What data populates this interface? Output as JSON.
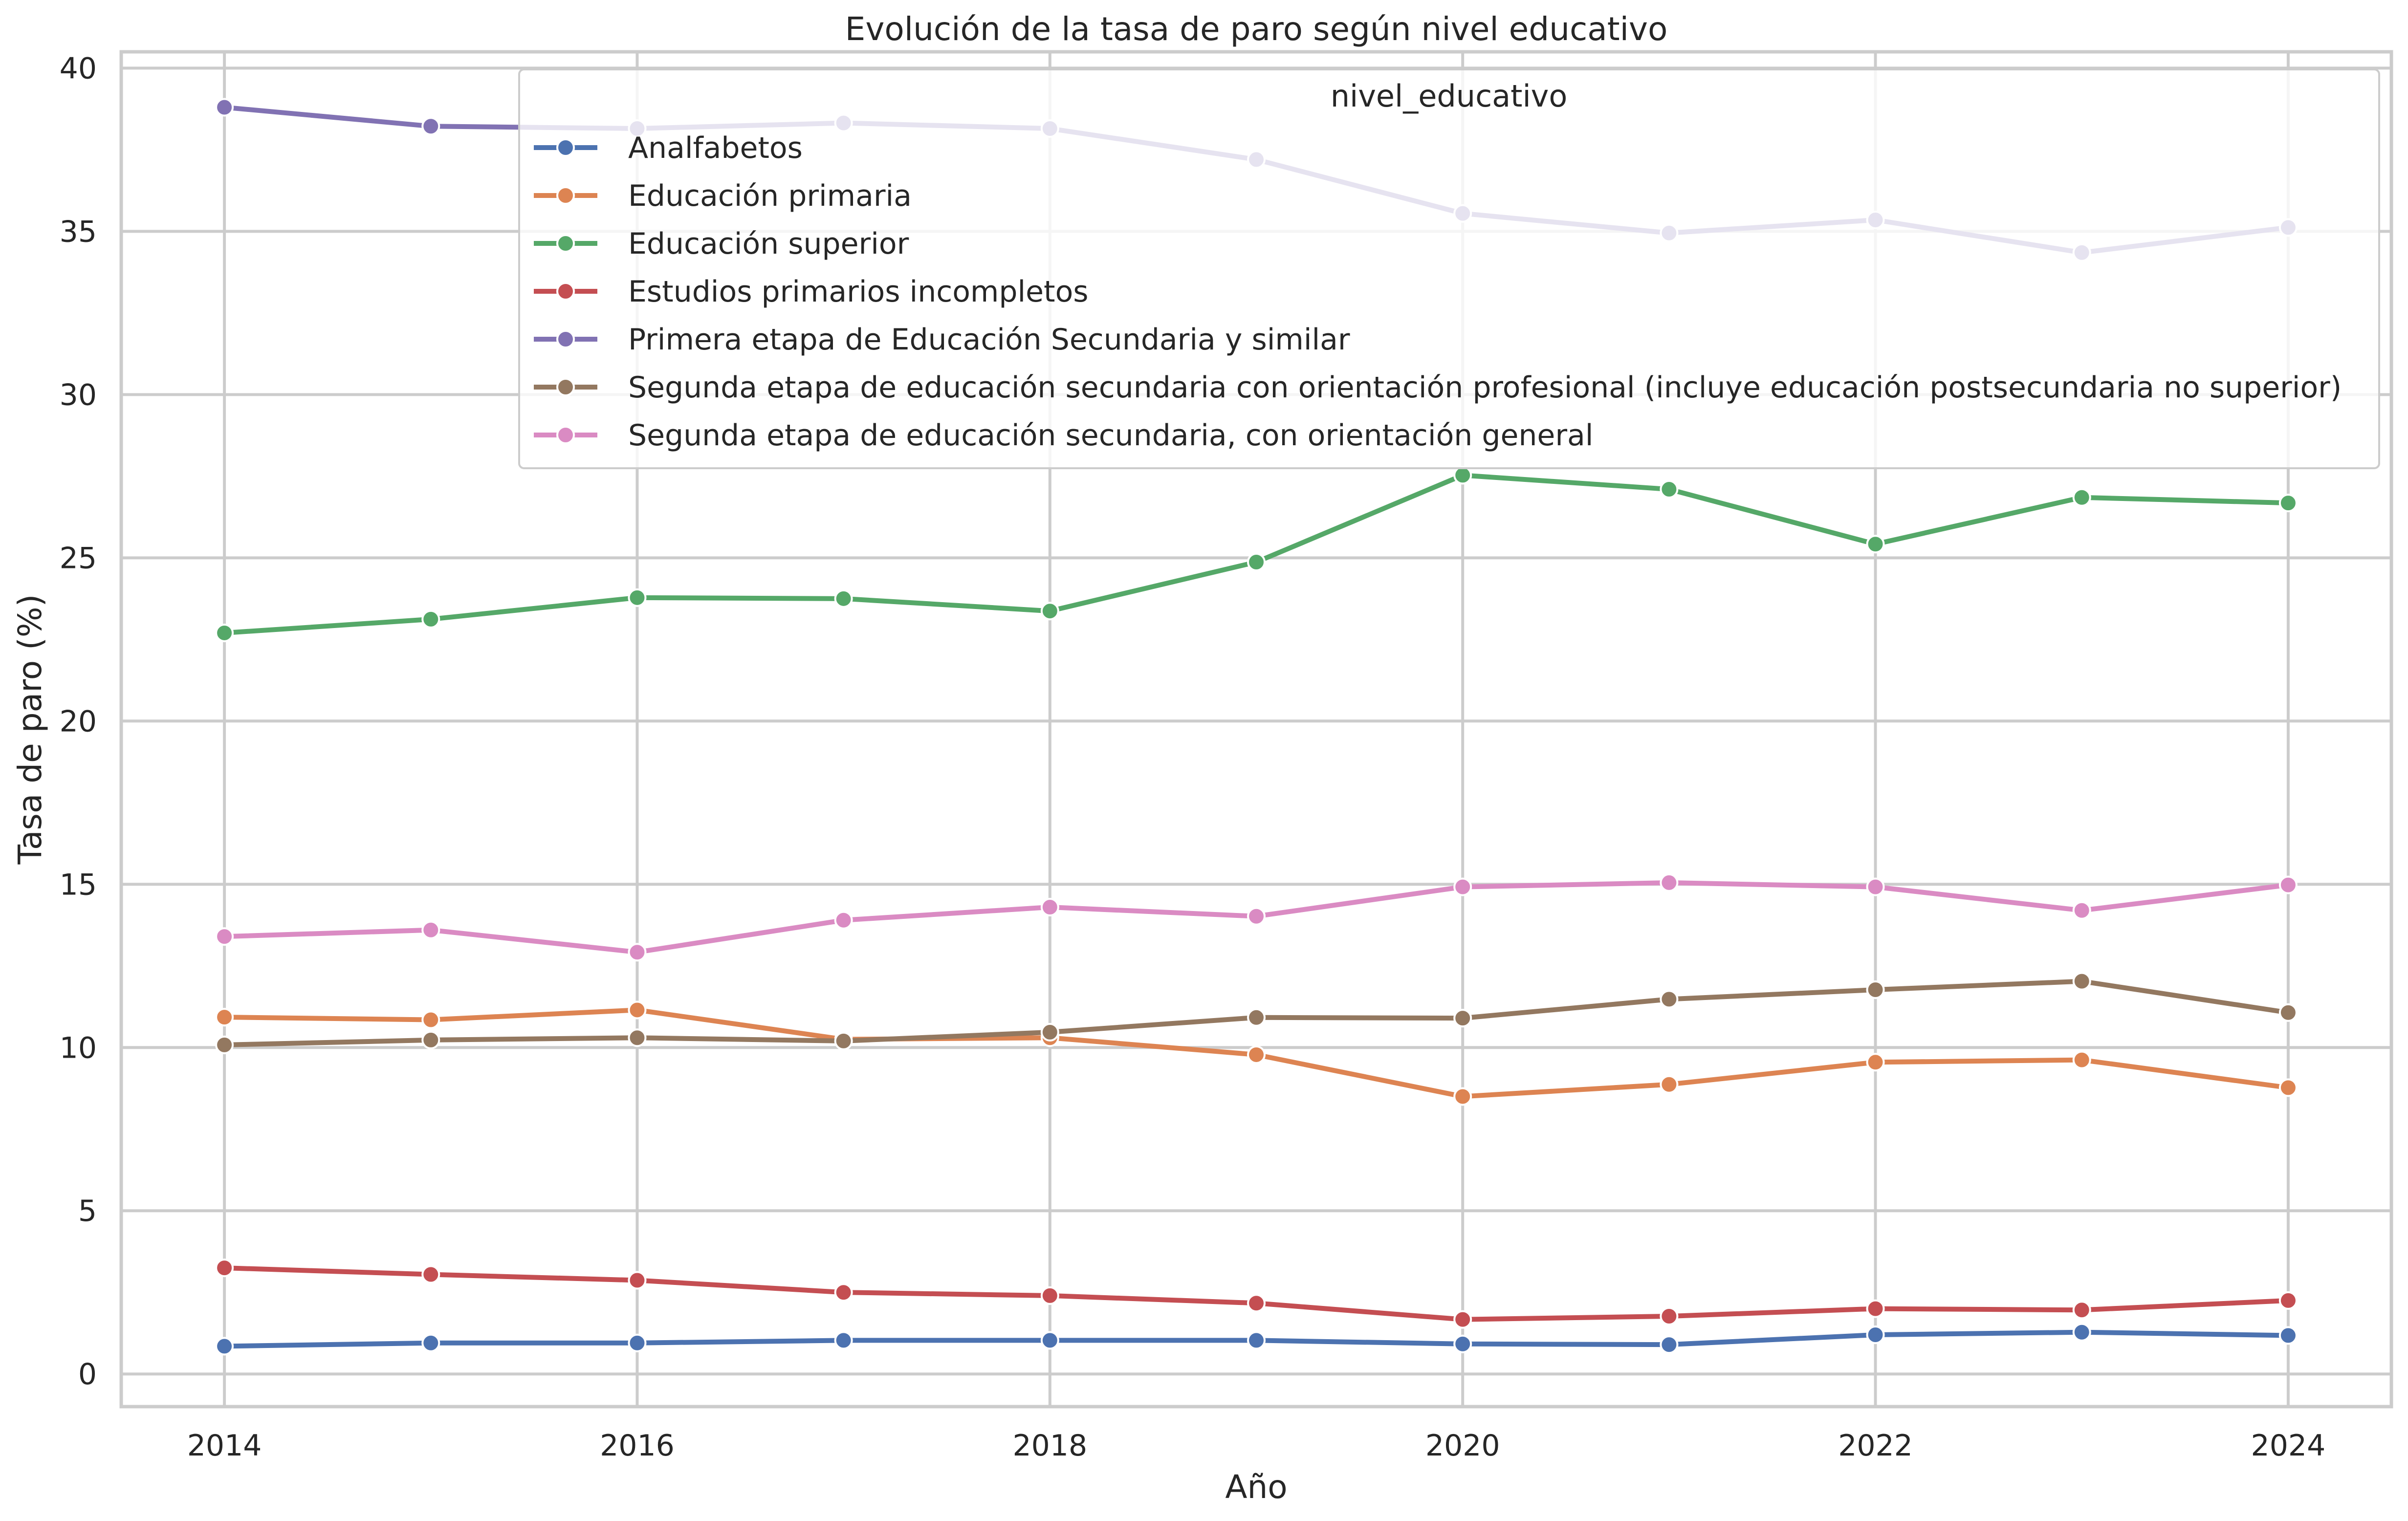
{
  "chart_data": {
    "type": "line",
    "title": "Evolución de la tasa de paro según nivel educativo",
    "xlabel": "Año",
    "ylabel": "Tasa de paro (%)",
    "xlim": [
      2013.5,
      2024.5
    ],
    "ylim": [
      -1,
      40.5
    ],
    "x_ticks": [
      2014,
      2016,
      2018,
      2020,
      2022,
      2024
    ],
    "y_ticks": [
      0,
      5,
      10,
      15,
      20,
      25,
      30,
      35,
      40
    ],
    "grid": true,
    "legend_position": "top-right",
    "legend_title": "nivel_educativo",
    "x": [
      2014,
      2015,
      2016,
      2017,
      2018,
      2019,
      2020,
      2021,
      2022,
      2023,
      2024
    ],
    "series": [
      {
        "name": "Analfabetos",
        "color": "#4c72b0",
        "values": [
          0.85,
          0.95,
          0.95,
          1.03,
          1.03,
          1.03,
          0.92,
          0.9,
          1.2,
          1.28,
          1.18
        ]
      },
      {
        "name": "Educación primaria",
        "color": "#dd8452",
        "values": [
          10.93,
          10.85,
          11.15,
          10.25,
          10.3,
          9.78,
          8.5,
          8.87,
          9.55,
          9.62,
          8.77
        ]
      },
      {
        "name": "Educación superior",
        "color": "#55a868",
        "values": [
          22.7,
          23.12,
          23.78,
          23.75,
          23.37,
          24.87,
          27.53,
          27.1,
          25.42,
          26.85,
          26.68
        ]
      },
      {
        "name": "Estudios primarios incompletos",
        "color": "#c44e52",
        "values": [
          3.25,
          3.05,
          2.87,
          2.5,
          2.4,
          2.17,
          1.67,
          1.77,
          2.0,
          1.96,
          2.25
        ]
      },
      {
        "name": "Primera etapa de Educación Secundaria y similar",
        "color": "#8172b3",
        "values": [
          38.8,
          38.22,
          38.15,
          38.32,
          38.15,
          37.2,
          35.55,
          34.95,
          35.35,
          34.35,
          35.12
        ]
      },
      {
        "name": "Segunda etapa de educación secundaria con orientación profesional (incluye educación postsecundaria no superior)",
        "color": "#937860",
        "values": [
          10.08,
          10.23,
          10.3,
          10.2,
          10.47,
          10.92,
          10.9,
          11.48,
          11.77,
          12.03,
          11.07
        ]
      },
      {
        "name": "Segunda etapa de educación secundaria, con orientación general",
        "color": "#da8bc3",
        "values": [
          13.4,
          13.6,
          12.92,
          13.9,
          14.3,
          14.02,
          14.92,
          15.05,
          14.92,
          14.2,
          14.98
        ]
      }
    ]
  }
}
